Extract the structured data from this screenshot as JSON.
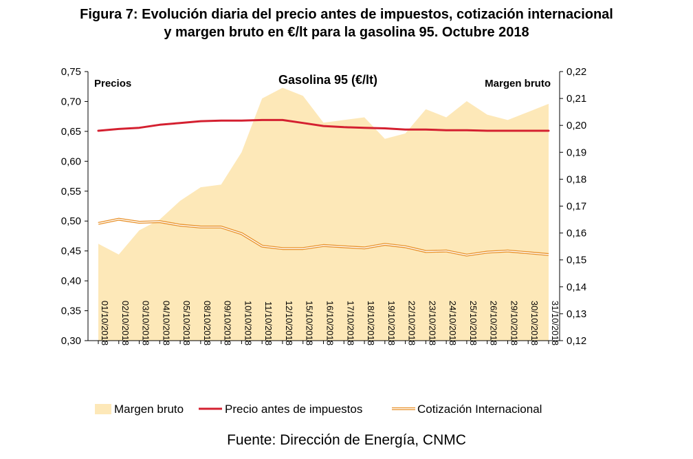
{
  "figure": {
    "title_line1": "Figura 7: Evolución diaria del precio antes de impuestos, cotización internacional",
    "title_line2": "y margen bruto en €/lt para la gasolina 95. Octubre 2018"
  },
  "source": "Fuente: Dirección de Energía, CNMC",
  "colors": {
    "margen_fill": "#fde8b8",
    "precio_line": "#d42030",
    "cotizacion_line": "#e8912a",
    "axis": "#000000"
  },
  "chart_data": {
    "type": "line",
    "title": "Gasolina 95 (€/lt)",
    "left_axis_label": "Precios",
    "right_axis_label": "Margen bruto",
    "ylim_left": [
      0.3,
      0.75
    ],
    "ylim_right": [
      0.12,
      0.22
    ],
    "yticks_left": [
      "0,30",
      "0,35",
      "0,40",
      "0,45",
      "0,50",
      "0,55",
      "0,60",
      "0,65",
      "0,70",
      "0,75"
    ],
    "yticks_right": [
      "0,12",
      "0,13",
      "0,14",
      "0,15",
      "0,16",
      "0,17",
      "0,18",
      "0,19",
      "0,20",
      "0,21",
      "0,22"
    ],
    "categories": [
      "01/10/2018",
      "02/10/2018",
      "03/10/2018",
      "04/10/2018",
      "05/10/2018",
      "08/10/2018",
      "09/10/2018",
      "10/10/2018",
      "11/10/2018",
      "12/10/2018",
      "15/10/2018",
      "16/10/2018",
      "17/10/2018",
      "18/10/2018",
      "19/10/2018",
      "22/10/2018",
      "23/10/2018",
      "24/10/2018",
      "25/10/2018",
      "26/10/2018",
      "29/10/2018",
      "30/10/2018",
      "31/10/2018"
    ],
    "series": [
      {
        "name": "Margen bruto",
        "axis": "right",
        "style": "area",
        "values": [
          0.156,
          0.152,
          0.161,
          0.165,
          0.172,
          0.177,
          0.178,
          0.19,
          0.21,
          0.214,
          0.211,
          0.201,
          0.202,
          0.203,
          0.195,
          0.197,
          0.206,
          0.203,
          0.209,
          0.204,
          0.202,
          0.205,
          0.208
        ]
      },
      {
        "name": "Precio antes de impuestos",
        "axis": "left",
        "style": "line",
        "values": [
          0.651,
          0.654,
          0.656,
          0.661,
          0.664,
          0.667,
          0.668,
          0.668,
          0.669,
          0.669,
          0.664,
          0.659,
          0.657,
          0.656,
          0.655,
          0.653,
          0.653,
          0.652,
          0.652,
          0.651,
          0.651,
          0.651,
          0.651
        ]
      },
      {
        "name": "Cotización Internacional",
        "axis": "left",
        "style": "double-line",
        "values": [
          0.496,
          0.503,
          0.498,
          0.499,
          0.493,
          0.49,
          0.49,
          0.479,
          0.458,
          0.454,
          0.454,
          0.459,
          0.457,
          0.455,
          0.461,
          0.457,
          0.449,
          0.45,
          0.443,
          0.448,
          0.45,
          0.447,
          0.444
        ]
      }
    ],
    "grid": false,
    "legend_position": "bottom"
  }
}
